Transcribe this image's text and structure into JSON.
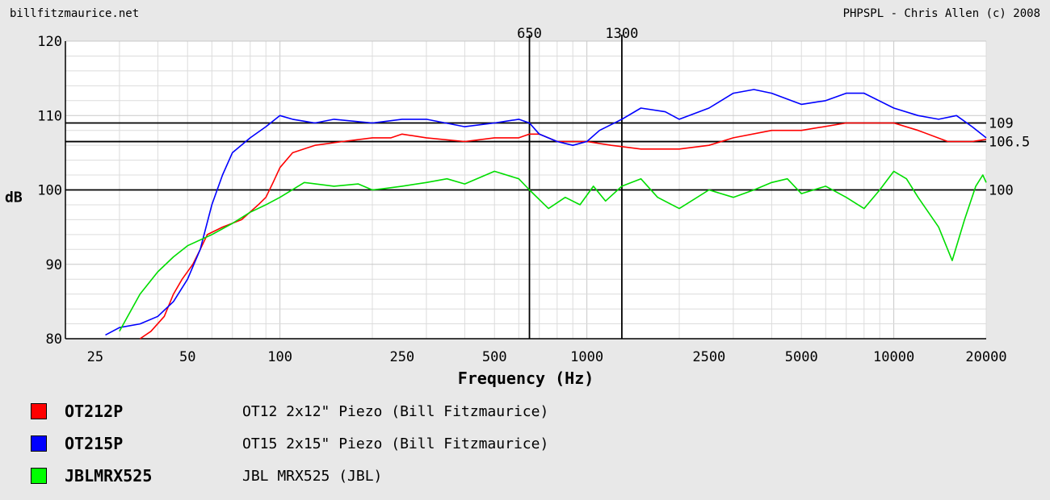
{
  "header": {
    "left": "billfitzmaurice.net",
    "right": "PHPSPL - Chris Allen (c) 2008"
  },
  "chart_data": {
    "type": "line",
    "xlabel": "Frequency (Hz)",
    "ylabel": "dB",
    "x_scale": "log",
    "xlim": [
      20,
      20000
    ],
    "ylim": [
      80,
      120
    ],
    "grid": true,
    "x_tick_labels": [
      25,
      50,
      100,
      250,
      500,
      1000,
      2500,
      5000,
      10000,
      20000
    ],
    "y_tick_labels": [
      80,
      90,
      100,
      110,
      120
    ],
    "vertical_markers": [
      650,
      1300
    ],
    "horizontal_markers": [
      109,
      106.5,
      100
    ],
    "series": [
      {
        "name": "OT212P",
        "color": "#ff0000",
        "points": [
          [
            35,
            80
          ],
          [
            38,
            81
          ],
          [
            42,
            83
          ],
          [
            45,
            86
          ],
          [
            48,
            88
          ],
          [
            52,
            90
          ],
          [
            55,
            92
          ],
          [
            58,
            94
          ],
          [
            65,
            95
          ],
          [
            75,
            96
          ],
          [
            85,
            98
          ],
          [
            90,
            99
          ],
          [
            95,
            101
          ],
          [
            100,
            103
          ],
          [
            110,
            105
          ],
          [
            130,
            106
          ],
          [
            160,
            106.5
          ],
          [
            200,
            107
          ],
          [
            230,
            107
          ],
          [
            250,
            107.5
          ],
          [
            300,
            107
          ],
          [
            400,
            106.5
          ],
          [
            500,
            107
          ],
          [
            600,
            107
          ],
          [
            650,
            107.5
          ],
          [
            700,
            107.5
          ],
          [
            800,
            106.5
          ],
          [
            1000,
            106.5
          ],
          [
            1200,
            106
          ],
          [
            1500,
            105.5
          ],
          [
            2000,
            105.5
          ],
          [
            2500,
            106
          ],
          [
            3000,
            107
          ],
          [
            4000,
            108
          ],
          [
            5000,
            108
          ],
          [
            7000,
            109
          ],
          [
            10000,
            109
          ],
          [
            12000,
            108
          ],
          [
            15000,
            106.5
          ],
          [
            18000,
            106.5
          ],
          [
            20000,
            106.8
          ]
        ]
      },
      {
        "name": "OT215P",
        "color": "#0000ff",
        "points": [
          [
            27,
            80.5
          ],
          [
            30,
            81.5
          ],
          [
            35,
            82
          ],
          [
            40,
            83
          ],
          [
            45,
            85
          ],
          [
            50,
            88
          ],
          [
            55,
            92
          ],
          [
            60,
            98
          ],
          [
            65,
            102
          ],
          [
            70,
            105
          ],
          [
            80,
            107
          ],
          [
            90,
            108.5
          ],
          [
            100,
            110
          ],
          [
            110,
            109.5
          ],
          [
            130,
            109
          ],
          [
            150,
            109.5
          ],
          [
            200,
            109
          ],
          [
            250,
            109.5
          ],
          [
            300,
            109.5
          ],
          [
            400,
            108.5
          ],
          [
            500,
            109
          ],
          [
            600,
            109.5
          ],
          [
            650,
            109
          ],
          [
            700,
            107.5
          ],
          [
            800,
            106.5
          ],
          [
            900,
            106
          ],
          [
            1000,
            106.5
          ],
          [
            1100,
            108
          ],
          [
            1300,
            109.5
          ],
          [
            1500,
            111
          ],
          [
            1800,
            110.5
          ],
          [
            2000,
            109.5
          ],
          [
            2500,
            111
          ],
          [
            3000,
            113
          ],
          [
            3500,
            113.5
          ],
          [
            4000,
            113
          ],
          [
            5000,
            111.5
          ],
          [
            6000,
            112
          ],
          [
            7000,
            113
          ],
          [
            8000,
            113
          ],
          [
            10000,
            111
          ],
          [
            12000,
            110
          ],
          [
            14000,
            109.5
          ],
          [
            16000,
            110
          ],
          [
            18000,
            108.5
          ],
          [
            20000,
            107
          ]
        ]
      },
      {
        "name": "JBLMRX525",
        "color": "#00dd00",
        "points": [
          [
            30,
            81
          ],
          [
            35,
            86
          ],
          [
            40,
            89
          ],
          [
            45,
            91
          ],
          [
            50,
            92.5
          ],
          [
            60,
            94
          ],
          [
            70,
            95.5
          ],
          [
            80,
            97
          ],
          [
            90,
            98
          ],
          [
            100,
            99
          ],
          [
            120,
            101
          ],
          [
            150,
            100.5
          ],
          [
            180,
            100.8
          ],
          [
            200,
            100
          ],
          [
            220,
            100.2
          ],
          [
            250,
            100.5
          ],
          [
            300,
            101
          ],
          [
            350,
            101.5
          ],
          [
            400,
            100.8
          ],
          [
            500,
            102.5
          ],
          [
            600,
            101.5
          ],
          [
            650,
            100
          ],
          [
            750,
            97.5
          ],
          [
            850,
            99
          ],
          [
            950,
            98
          ],
          [
            1050,
            100.5
          ],
          [
            1150,
            98.5
          ],
          [
            1300,
            100.5
          ],
          [
            1500,
            101.5
          ],
          [
            1700,
            99
          ],
          [
            2000,
            97.5
          ],
          [
            2500,
            100
          ],
          [
            3000,
            99
          ],
          [
            3500,
            100
          ],
          [
            4000,
            101
          ],
          [
            4500,
            101.5
          ],
          [
            5000,
            99.5
          ],
          [
            6000,
            100.5
          ],
          [
            7000,
            99
          ],
          [
            8000,
            97.5
          ],
          [
            9000,
            100
          ],
          [
            10000,
            102.5
          ],
          [
            11000,
            101.5
          ],
          [
            12000,
            99
          ],
          [
            14000,
            95
          ],
          [
            15500,
            90.5
          ],
          [
            17000,
            96
          ],
          [
            18500,
            100.5
          ],
          [
            19500,
            102
          ],
          [
            20000,
            101
          ]
        ]
      }
    ],
    "legend": [
      {
        "name": "OT212P",
        "description": "OT12 2x12\" Piezo (Bill Fitzmaurice)",
        "color": "#ff0000"
      },
      {
        "name": "OT215P",
        "description": "OT15 2x15\" Piezo (Bill Fitzmaurice)",
        "color": "#0000ff"
      },
      {
        "name": "JBLMRX525",
        "description": "JBL MRX525 (JBL)",
        "color": "#00ff00"
      }
    ]
  }
}
